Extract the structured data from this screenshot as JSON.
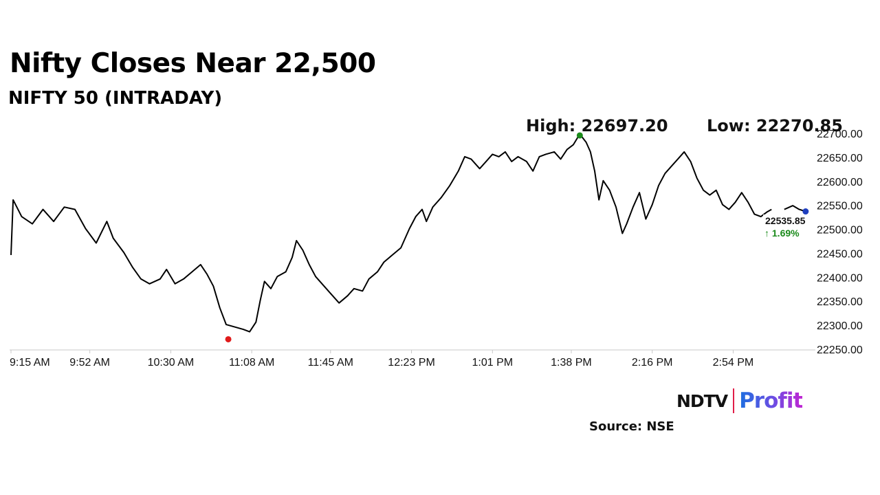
{
  "header": {
    "title": "Nifty Closes Near 22,500",
    "subtitle": "NIFTY 50 (INTRADAY)"
  },
  "footer": {
    "logo_left": "NDTV",
    "logo_right": "Profit",
    "source": "Source: NSE"
  },
  "colors": {
    "line": "#000000",
    "high_marker": "#1a8a1a",
    "low_marker": "#e01b1b",
    "last_marker": "#1f3fbf",
    "change_text": "#1a8a1a",
    "axis": "#c8c8c8"
  },
  "chart_data": {
    "type": "line",
    "title": "Nifty Closes Near 22,500",
    "subtitle": "NIFTY 50 (INTRADAY)",
    "xlabel": "",
    "ylabel": "",
    "x_ticks": [
      "9:15 AM",
      "9:52 AM",
      "10:30 AM",
      "11:08 AM",
      "11:45 AM",
      "12:23 PM",
      "1:01 PM",
      "1:38 PM",
      "2:16 PM",
      "2:54 PM"
    ],
    "y_ticks": [
      "22250.00",
      "22300.00",
      "22350.00",
      "22400.00",
      "22450.00",
      "22500.00",
      "22550.00",
      "22600.00",
      "22650.00",
      "22700.00"
    ],
    "ylim": [
      22250,
      22700
    ],
    "y_axis_position": "right",
    "grid": false,
    "session": {
      "start": "9:15 AM",
      "end": "3:30 PM"
    },
    "series": [
      {
        "points": [
          [
            "9:15 AM",
            22445
          ],
          [
            "9:16 AM",
            22560
          ],
          [
            "9:20 AM",
            22525
          ],
          [
            "9:25 AM",
            22510
          ],
          [
            "9:30 AM",
            22540
          ],
          [
            "9:35 AM",
            22515
          ],
          [
            "9:40 AM",
            22545
          ],
          [
            "9:45 AM",
            22540
          ],
          [
            "9:50 AM",
            22500
          ],
          [
            "9:55 AM",
            22470
          ],
          [
            "10:00 AM",
            22515
          ],
          [
            "10:03 AM",
            22480
          ],
          [
            "10:08 AM",
            22450
          ],
          [
            "10:12 AM",
            22420
          ],
          [
            "10:16 AM",
            22395
          ],
          [
            "10:20 AM",
            22385
          ],
          [
            "10:25 AM",
            22395
          ],
          [
            "10:28 AM",
            22415
          ],
          [
            "10:32 AM",
            22385
          ],
          [
            "10:36 AM",
            22395
          ],
          [
            "10:40 AM",
            22410
          ],
          [
            "10:44 AM",
            22425
          ],
          [
            "10:47 AM",
            22405
          ],
          [
            "10:50 AM",
            22380
          ],
          [
            "10:53 AM",
            22335
          ],
          [
            "10:56 AM",
            22300
          ],
          [
            "11:00 AM",
            22295
          ],
          [
            "11:04 AM",
            22290
          ],
          [
            "11:07 AM",
            22285
          ],
          [
            "11:10 AM",
            22305
          ],
          [
            "11:12 AM",
            22350
          ],
          [
            "11:14 AM",
            22390
          ],
          [
            "11:17 AM",
            22375
          ],
          [
            "11:20 AM",
            22400
          ],
          [
            "11:24 AM",
            22410
          ],
          [
            "11:27 AM",
            22440
          ],
          [
            "11:29 AM",
            22475
          ],
          [
            "11:32 AM",
            22455
          ],
          [
            "11:35 AM",
            22425
          ],
          [
            "11:38 AM",
            22400
          ],
          [
            "11:41 AM",
            22385
          ],
          [
            "11:45 AM",
            22365
          ],
          [
            "11:49 AM",
            22345
          ],
          [
            "11:53 AM",
            22360
          ],
          [
            "11:56 AM",
            22375
          ],
          [
            "12:00 PM",
            22370
          ],
          [
            "12:03 PM",
            22395
          ],
          [
            "12:07 PM",
            22410
          ],
          [
            "12:10 PM",
            22430
          ],
          [
            "12:14 PM",
            22445
          ],
          [
            "12:18 PM",
            22460
          ],
          [
            "12:22 PM",
            22500
          ],
          [
            "12:25 PM",
            22525
          ],
          [
            "12:28 PM",
            22540
          ],
          [
            "12:30 PM",
            22515
          ],
          [
            "12:33 PM",
            22545
          ],
          [
            "12:37 PM",
            22565
          ],
          [
            "12:41 PM",
            22590
          ],
          [
            "12:45 PM",
            22620
          ],
          [
            "12:48 PM",
            22650
          ],
          [
            "12:51 PM",
            22645
          ],
          [
            "12:55 PM",
            22625
          ],
          [
            "12:58 PM",
            22640
          ],
          [
            "1:01 PM",
            22655
          ],
          [
            "1:04 PM",
            22650
          ],
          [
            "1:07 PM",
            22660
          ],
          [
            "1:10 PM",
            22640
          ],
          [
            "1:13 PM",
            22650
          ],
          [
            "1:17 PM",
            22640
          ],
          [
            "1:20 PM",
            22620
          ],
          [
            "1:23 PM",
            22650
          ],
          [
            "1:26 PM",
            22655
          ],
          [
            "1:30 PM",
            22660
          ],
          [
            "1:33 PM",
            22645
          ],
          [
            "1:36 PM",
            22665
          ],
          [
            "1:39 PM",
            22675
          ],
          [
            "1:42 PM",
            22697.2
          ],
          [
            "1:45 PM",
            22680
          ],
          [
            "1:47 PM",
            22660
          ],
          [
            "1:49 PM",
            22620
          ],
          [
            "1:51 PM",
            22560
          ],
          [
            "1:53 PM",
            22600
          ],
          [
            "1:56 PM",
            22580
          ],
          [
            "1:59 PM",
            22545
          ],
          [
            "2:02 PM",
            22490
          ],
          [
            "2:04 PM",
            22510
          ],
          [
            "2:07 PM",
            22545
          ],
          [
            "2:10 PM",
            22575
          ],
          [
            "2:13 PM",
            22520
          ],
          [
            "2:16 PM",
            22550
          ],
          [
            "2:19 PM",
            22590
          ],
          [
            "2:22 PM",
            22615
          ],
          [
            "2:25 PM",
            22630
          ],
          [
            "2:28 PM",
            22645
          ],
          [
            "2:31 PM",
            22660
          ],
          [
            "2:34 PM",
            22640
          ],
          [
            "2:37 PM",
            22605
          ],
          [
            "2:40 PM",
            22580
          ],
          [
            "2:43 PM",
            22570
          ],
          [
            "2:46 PM",
            22580
          ],
          [
            "2:49 PM",
            22550
          ],
          [
            "2:52 PM",
            22540
          ],
          [
            "2:55 PM",
            22555
          ],
          [
            "2:58 PM",
            22575
          ],
          [
            "3:01 PM",
            22555
          ],
          [
            "3:04 PM",
            22530
          ],
          [
            "3:07 PM",
            22525
          ],
          [
            "3:10 PM",
            22535
          ],
          [
            "3:12 PM",
            22540
          ],
          [
            "3:15 PM",
            22530
          ],
          [
            "3:18 PM",
            22540
          ],
          [
            "3:22 PM",
            22548
          ],
          [
            "3:25 PM",
            22540
          ],
          [
            "3:28 PM",
            22535.85
          ]
        ]
      }
    ],
    "gap": {
      "after": "3:12 PM",
      "resume": "3:18 PM"
    },
    "annotations": {
      "high_label": "High: 22697.20",
      "low_label": "Low: 22270.85",
      "high": {
        "time": "1:42 PM",
        "value": 22697.2
      },
      "low": {
        "time": "10:57 AM",
        "value": 22270.85
      },
      "last_value": "22535.85",
      "change_label": "↑ 1.69%",
      "last": {
        "time": "3:28 PM",
        "value": 22535.85
      }
    }
  }
}
